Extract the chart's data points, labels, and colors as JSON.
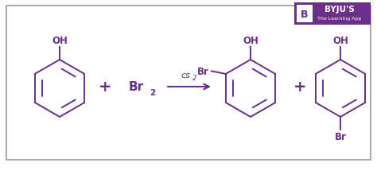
{
  "bg_color": "#ffffff",
  "border_color": "#999999",
  "molecule_color": "#6B2F8A",
  "arrow_color": "#6B2F8A",
  "cs2_color": "#444444",
  "byju_box_color": "#6B2F8A",
  "figsize": [
    4.74,
    2.3
  ],
  "dpi": 100,
  "xlim": [
    0,
    474
  ],
  "ylim": [
    0,
    230
  ]
}
